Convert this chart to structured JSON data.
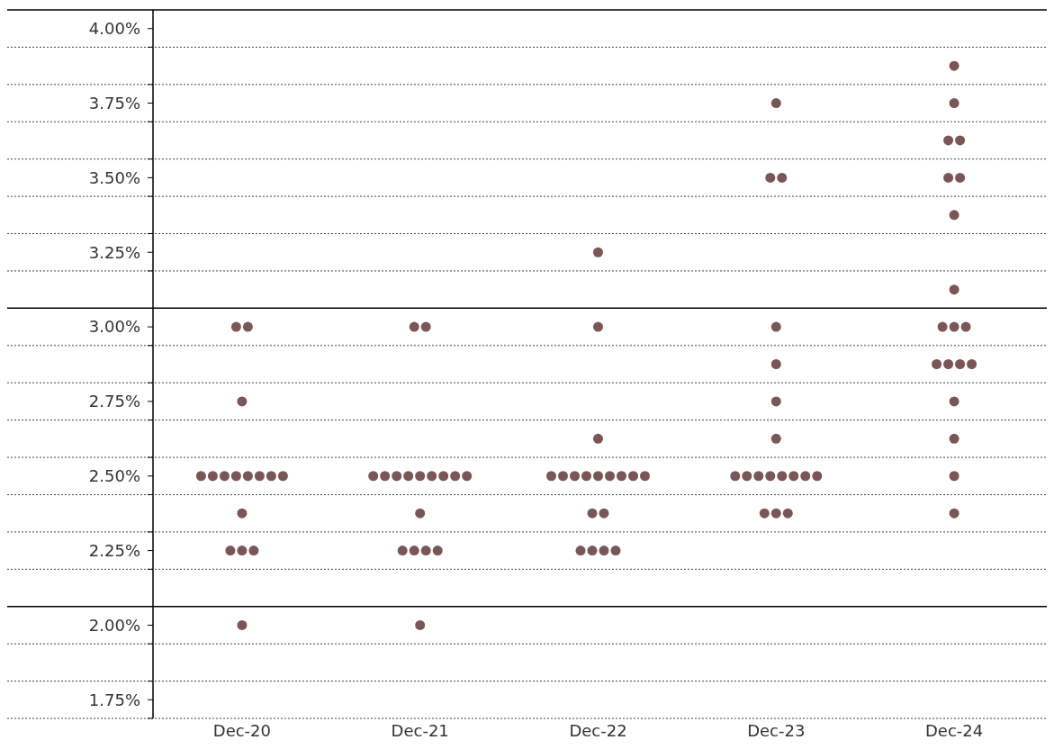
{
  "chart_data": {
    "type": "scatter",
    "categories": [
      "Dec-20",
      "Dec-21",
      "Dec-22",
      "Dec-23",
      "Dec-24"
    ],
    "ylim": [
      1.6875,
      4.0625
    ],
    "yticks": [
      {
        "value": 1.6875,
        "label": null
      },
      {
        "value": 1.75,
        "label": "1.75%"
      },
      {
        "value": 1.8125,
        "label": null
      },
      {
        "value": 1.9375,
        "label": null
      },
      {
        "value": 2.0,
        "label": "2.00%"
      },
      {
        "value": 2.1875,
        "label": null
      },
      {
        "value": 2.25,
        "label": "2.25%"
      },
      {
        "value": 2.3125,
        "label": null
      },
      {
        "value": 2.4375,
        "label": null
      },
      {
        "value": 2.5,
        "label": "2.50%"
      },
      {
        "value": 2.5625,
        "label": null
      },
      {
        "value": 2.6875,
        "label": null
      },
      {
        "value": 2.75,
        "label": "2.75%"
      },
      {
        "value": 2.8125,
        "label": null
      },
      {
        "value": 2.9375,
        "label": null
      },
      {
        "value": 3.0,
        "label": "3.00%"
      },
      {
        "value": 3.1875,
        "label": null
      },
      {
        "value": 3.25,
        "label": "3.25%"
      },
      {
        "value": 3.3125,
        "label": null
      },
      {
        "value": 3.4375,
        "label": null
      },
      {
        "value": 3.5,
        "label": "3.50%"
      },
      {
        "value": 3.5625,
        "label": null
      },
      {
        "value": 3.6875,
        "label": null
      },
      {
        "value": 3.75,
        "label": "3.75%"
      },
      {
        "value": 3.8125,
        "label": null
      },
      {
        "value": 3.9375,
        "label": null
      },
      {
        "value": 4.0,
        "label": "4.00%"
      }
    ],
    "grid": "y",
    "marker": "circle",
    "ref_lines": [
      {
        "axis": "y",
        "value": 3.0625,
        "color": "#000000"
      },
      {
        "axis": "y",
        "value": 2.0625,
        "color": "#000000"
      }
    ],
    "series": [
      {
        "color": "#7a5656",
        "x": [
          "Dec-20",
          "Dec-20",
          "Dec-20",
          "Dec-20",
          "Dec-20",
          "Dec-20",
          "Dec-20",
          "Dec-20",
          "Dec-20",
          "Dec-20",
          "Dec-20",
          "Dec-20",
          "Dec-20",
          "Dec-20",
          "Dec-20",
          "Dec-20",
          "Dec-21",
          "Dec-21",
          "Dec-21",
          "Dec-21",
          "Dec-21",
          "Dec-21",
          "Dec-21",
          "Dec-21",
          "Dec-21",
          "Dec-21",
          "Dec-21",
          "Dec-21",
          "Dec-21",
          "Dec-21",
          "Dec-21",
          "Dec-21",
          "Dec-21",
          "Dec-22",
          "Dec-22",
          "Dec-22",
          "Dec-22",
          "Dec-22",
          "Dec-22",
          "Dec-22",
          "Dec-22",
          "Dec-22",
          "Dec-22",
          "Dec-22",
          "Dec-22",
          "Dec-22",
          "Dec-22",
          "Dec-22",
          "Dec-22",
          "Dec-22",
          "Dec-22",
          "Dec-23",
          "Dec-23",
          "Dec-23",
          "Dec-23",
          "Dec-23",
          "Dec-23",
          "Dec-23",
          "Dec-23",
          "Dec-23",
          "Dec-23",
          "Dec-23",
          "Dec-23",
          "Dec-23",
          "Dec-23",
          "Dec-23",
          "Dec-23",
          "Dec-23",
          "Dec-23",
          "Dec-24",
          "Dec-24",
          "Dec-24",
          "Dec-24",
          "Dec-24",
          "Dec-24",
          "Dec-24",
          "Dec-24",
          "Dec-24",
          "Dec-24",
          "Dec-24",
          "Dec-24",
          "Dec-24",
          "Dec-24",
          "Dec-24",
          "Dec-24",
          "Dec-24",
          "Dec-24",
          "Dec-24"
        ],
        "values": [
          3.0,
          3.0,
          2.75,
          2.5,
          2.5,
          2.5,
          2.5,
          2.5,
          2.5,
          2.5,
          2.5,
          2.375,
          2.25,
          2.25,
          2.25,
          2.0,
          3.0,
          3.0,
          2.5,
          2.5,
          2.5,
          2.5,
          2.5,
          2.5,
          2.5,
          2.5,
          2.5,
          2.375,
          2.25,
          2.25,
          2.25,
          2.25,
          2.0,
          3.25,
          3.0,
          2.625,
          2.5,
          2.5,
          2.5,
          2.5,
          2.5,
          2.5,
          2.5,
          2.5,
          2.5,
          2.375,
          2.375,
          2.25,
          2.25,
          2.25,
          2.25,
          3.75,
          3.5,
          3.5,
          3.0,
          2.875,
          2.75,
          2.625,
          2.5,
          2.5,
          2.5,
          2.5,
          2.5,
          2.5,
          2.5,
          2.5,
          2.375,
          2.375,
          2.375,
          3.875,
          3.75,
          3.625,
          3.625,
          3.5,
          3.5,
          3.375,
          3.125,
          3.0,
          3.0,
          3.0,
          2.875,
          2.875,
          2.875,
          2.875,
          2.75,
          2.625,
          2.5,
          2.375
        ]
      }
    ]
  }
}
